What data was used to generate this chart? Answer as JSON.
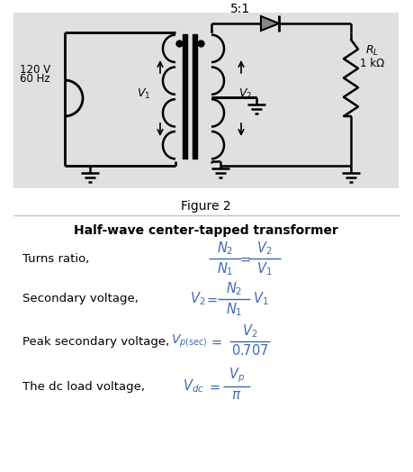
{
  "fig_width": 4.59,
  "fig_height": 5.24,
  "dpi": 100,
  "bg_color": "#ffffff",
  "circuit_bg": "#e0e0e0",
  "title_circuit": "5:1",
  "label_120V": "120 V",
  "label_60Hz": "60 Hz",
  "label_V1": "$\\mathit{V}_1$",
  "label_V2": "$\\mathit{V}_2$",
  "label_RL": "$R_L$",
  "label_1kohm": "1 kΩ",
  "figure_label": "Figure 2",
  "section_title": "Half-wave center-tapped transformer",
  "row1_left": "Turns ratio,",
  "row2_left": "Secondary voltage,",
  "row3_left": "Peak secondary voltage,",
  "row4_left": "The dc load voltage,",
  "blue": "#4169b0",
  "black": "#000000",
  "eq_color": "#4169b0"
}
